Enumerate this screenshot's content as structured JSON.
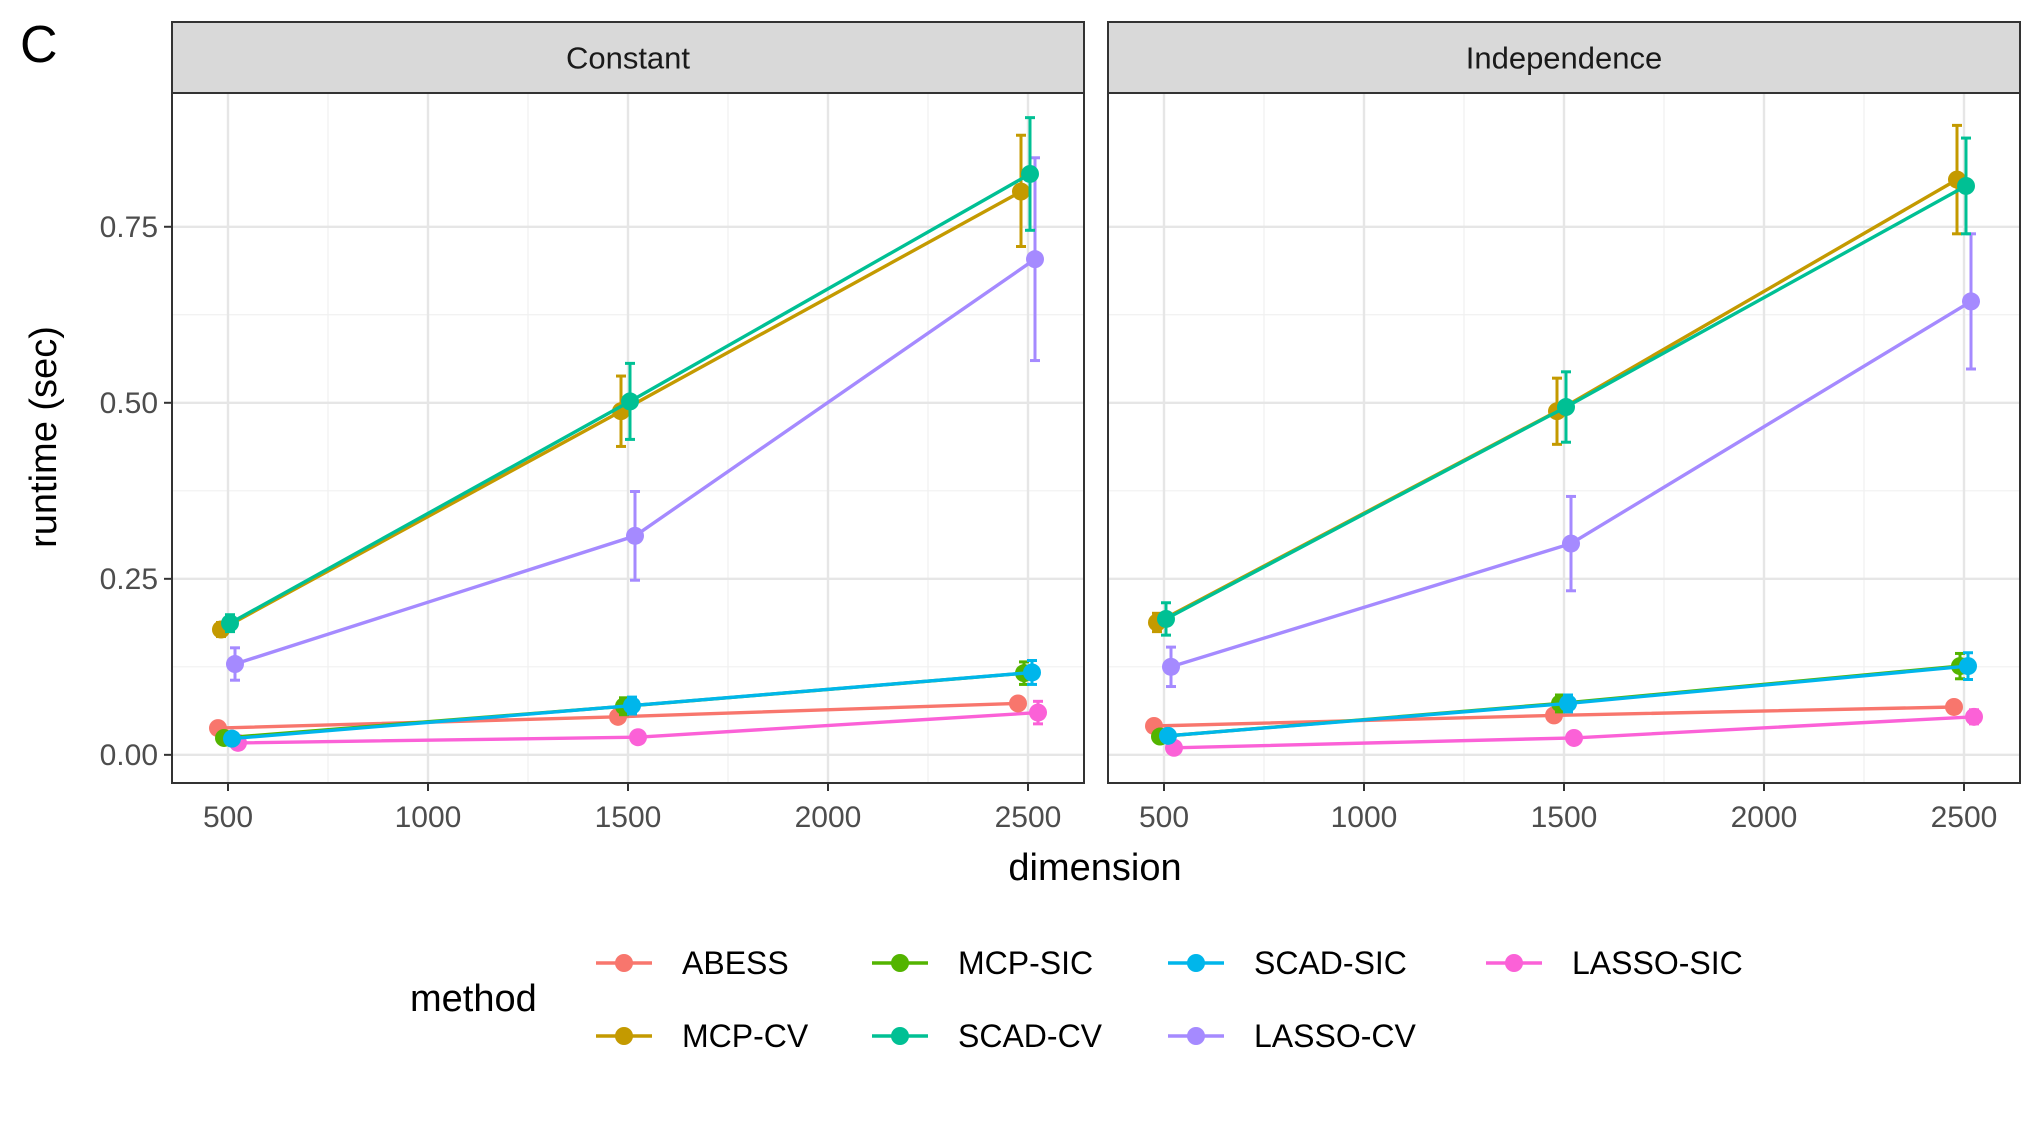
{
  "panel_tag": "C",
  "chart_data": {
    "type": "line",
    "xlabel": "dimension",
    "ylabel": "runtime (sec)",
    "xlim": [
      360,
      2640
    ],
    "ylim": [
      -0.04,
      0.94
    ],
    "x_ticks": [
      500,
      1000,
      1500,
      2000,
      2500
    ],
    "x_tick_labels": [
      "500",
      "1000",
      "1500",
      "2000",
      "2500"
    ],
    "y_ticks": [
      0,
      0.25,
      0.5,
      0.75
    ],
    "y_tick_labels": [
      "0.00",
      "0.25",
      "0.50",
      "0.75"
    ],
    "grid": true,
    "legend": {
      "title": "method",
      "position": "bottom",
      "rows": [
        [
          "ABESS",
          "MCP-SIC",
          "SCAD-SIC",
          "LASSO-SIC"
        ],
        [
          "MCP-CV",
          "SCAD-CV",
          "LASSO-CV"
        ]
      ]
    },
    "colors": {
      "ABESS": "#F8766D",
      "MCP-CV": "#C49A00",
      "MCP-SIC": "#53B400",
      "SCAD-CV": "#00C094",
      "SCAD-SIC": "#00B6EB",
      "LASSO-CV": "#A58AFF",
      "LASSO-SIC": "#FB61D7"
    },
    "methods": [
      "ABESS",
      "MCP-CV",
      "MCP-SIC",
      "SCAD-CV",
      "SCAD-SIC",
      "LASSO-CV",
      "LASSO-SIC"
    ],
    "facets": [
      {
        "label": "Constant",
        "series": [
          {
            "name": "ABESS",
            "x": [
              500,
              1500,
              2500
            ],
            "y": [
              0.038,
              0.054,
              0.073
            ],
            "lo": [
              0.034,
              0.049,
              0.066
            ],
            "hi": [
              0.042,
              0.059,
              0.08
            ]
          },
          {
            "name": "MCP-CV",
            "x": [
              500,
              1500,
              2500
            ],
            "y": [
              0.178,
              0.488,
              0.8
            ],
            "lo": [
              0.168,
              0.438,
              0.722
            ],
            "hi": [
              0.188,
              0.538,
              0.88
            ]
          },
          {
            "name": "MCP-SIC",
            "x": [
              500,
              1500,
              2500
            ],
            "y": [
              0.024,
              0.069,
              0.116
            ],
            "lo": [
              0.019,
              0.057,
              0.1
            ],
            "hi": [
              0.03,
              0.081,
              0.132
            ]
          },
          {
            "name": "SCAD-CV",
            "x": [
              500,
              1500,
              2500
            ],
            "y": [
              0.187,
              0.502,
              0.825
            ],
            "lo": [
              0.175,
              0.448,
              0.745
            ],
            "hi": [
              0.199,
              0.556,
              0.905
            ]
          },
          {
            "name": "SCAD-SIC",
            "x": [
              500,
              1500,
              2500
            ],
            "y": [
              0.023,
              0.07,
              0.117
            ],
            "lo": [
              0.018,
              0.058,
              0.1
            ],
            "hi": [
              0.028,
              0.082,
              0.134
            ]
          },
          {
            "name": "LASSO-CV",
            "x": [
              500,
              1500,
              2500
            ],
            "y": [
              0.129,
              0.311,
              0.704
            ],
            "lo": [
              0.106,
              0.248,
              0.56
            ],
            "hi": [
              0.152,
              0.374,
              0.848
            ]
          },
          {
            "name": "LASSO-SIC",
            "x": [
              500,
              1500,
              2500
            ],
            "y": [
              0.017,
              0.025,
              0.06
            ],
            "lo": [
              0.009,
              0.017,
              0.044
            ],
            "hi": [
              0.025,
              0.033,
              0.076
            ]
          }
        ]
      },
      {
        "label": "Independence",
        "series": [
          {
            "name": "ABESS",
            "x": [
              500,
              1500,
              2500
            ],
            "y": [
              0.041,
              0.056,
              0.068
            ],
            "lo": [
              0.037,
              0.051,
              0.062
            ],
            "hi": [
              0.045,
              0.061,
              0.074
            ]
          },
          {
            "name": "MCP-CV",
            "x": [
              500,
              1500,
              2500
            ],
            "y": [
              0.188,
              0.488,
              0.817
            ],
            "lo": [
              0.175,
              0.441,
              0.74
            ],
            "hi": [
              0.201,
              0.535,
              0.894
            ]
          },
          {
            "name": "MCP-SIC",
            "x": [
              500,
              1500,
              2500
            ],
            "y": [
              0.026,
              0.073,
              0.126
            ],
            "lo": [
              0.02,
              0.061,
              0.108
            ],
            "hi": [
              0.032,
              0.085,
              0.144
            ]
          },
          {
            "name": "SCAD-CV",
            "x": [
              500,
              1500,
              2500
            ],
            "y": [
              0.193,
              0.494,
              0.808
            ],
            "lo": [
              0.17,
              0.444,
              0.74
            ],
            "hi": [
              0.216,
              0.544,
              0.876
            ]
          },
          {
            "name": "SCAD-SIC",
            "x": [
              500,
              1500,
              2500
            ],
            "y": [
              0.027,
              0.073,
              0.126
            ],
            "lo": [
              0.021,
              0.061,
              0.107
            ],
            "hi": [
              0.033,
              0.085,
              0.145
            ]
          },
          {
            "name": "LASSO-CV",
            "x": [
              500,
              1500,
              2500
            ],
            "y": [
              0.125,
              0.3,
              0.644
            ],
            "lo": [
              0.097,
              0.233,
              0.548
            ],
            "hi": [
              0.153,
              0.367,
              0.74
            ]
          },
          {
            "name": "LASSO-SIC",
            "x": [
              500,
              1500,
              2500
            ],
            "y": [
              0.01,
              0.024,
              0.054
            ],
            "lo": [
              0.005,
              0.016,
              0.044
            ],
            "hi": [
              0.015,
              0.032,
              0.064
            ]
          }
        ]
      }
    ]
  }
}
